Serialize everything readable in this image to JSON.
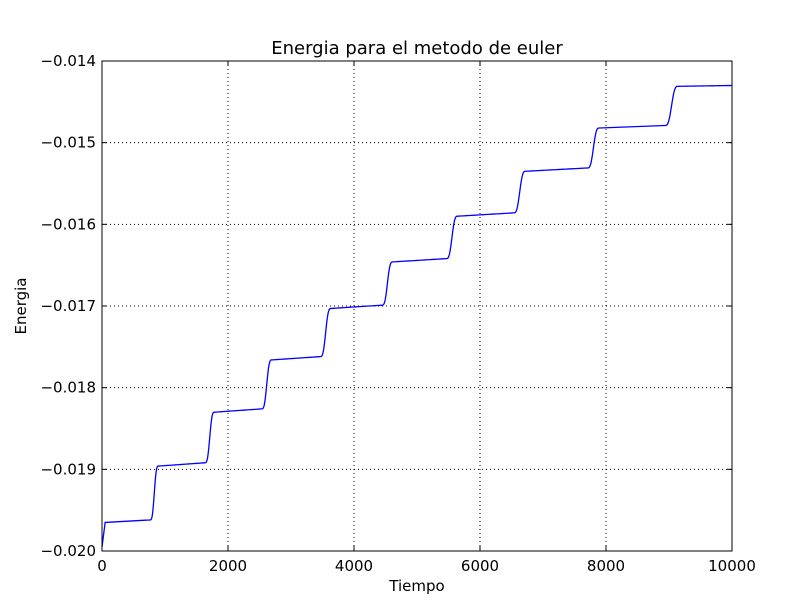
{
  "chart_data": {
    "type": "line",
    "title": "Energia para el metodo de euler",
    "xlabel": "Tiempo",
    "ylabel": "Energia",
    "xlim": [
      0,
      10000
    ],
    "ylim": [
      -0.02,
      -0.014
    ],
    "xticks": [
      0,
      2000,
      4000,
      6000,
      8000,
      10000
    ],
    "xtick_labels": [
      "0",
      "2000",
      "4000",
      "6000",
      "8000",
      "10000"
    ],
    "yticks": [
      -0.02,
      -0.019,
      -0.018,
      -0.017,
      -0.016,
      -0.015,
      -0.014
    ],
    "ytick_labels": [
      "−0.020",
      "−0.019",
      "−0.018",
      "−0.017",
      "−0.016",
      "−0.015",
      "−0.014"
    ],
    "grid": true,
    "series": [
      {
        "color": "#0000ff",
        "start": {
          "x": 0,
          "y": -0.01995
        },
        "plateaus": [
          {
            "x_start": 50,
            "x_end": 760,
            "y_start": -0.01965,
            "y_end": -0.01962
          },
          {
            "x_start": 900,
            "x_end": 1630,
            "y_start": -0.01896,
            "y_end": -0.01892
          },
          {
            "x_start": 1790,
            "x_end": 2530,
            "y_start": -0.0183,
            "y_end": -0.01826
          },
          {
            "x_start": 2700,
            "x_end": 3460,
            "y_start": -0.01766,
            "y_end": -0.01762
          },
          {
            "x_start": 3640,
            "x_end": 4440,
            "y_start": -0.01703,
            "y_end": -0.01699
          },
          {
            "x_start": 4620,
            "x_end": 5460,
            "y_start": -0.01646,
            "y_end": -0.01642
          },
          {
            "x_start": 5650,
            "x_end": 6530,
            "y_start": -0.0159,
            "y_end": -0.01586
          },
          {
            "x_start": 6730,
            "x_end": 7700,
            "y_start": -0.01535,
            "y_end": -0.01531
          },
          {
            "x_start": 7900,
            "x_end": 8930,
            "y_start": -0.01482,
            "y_end": -0.01479
          },
          {
            "x_start": 9150,
            "x_end": 10000,
            "y_start": -0.01431,
            "y_end": -0.0143
          }
        ]
      }
    ]
  }
}
